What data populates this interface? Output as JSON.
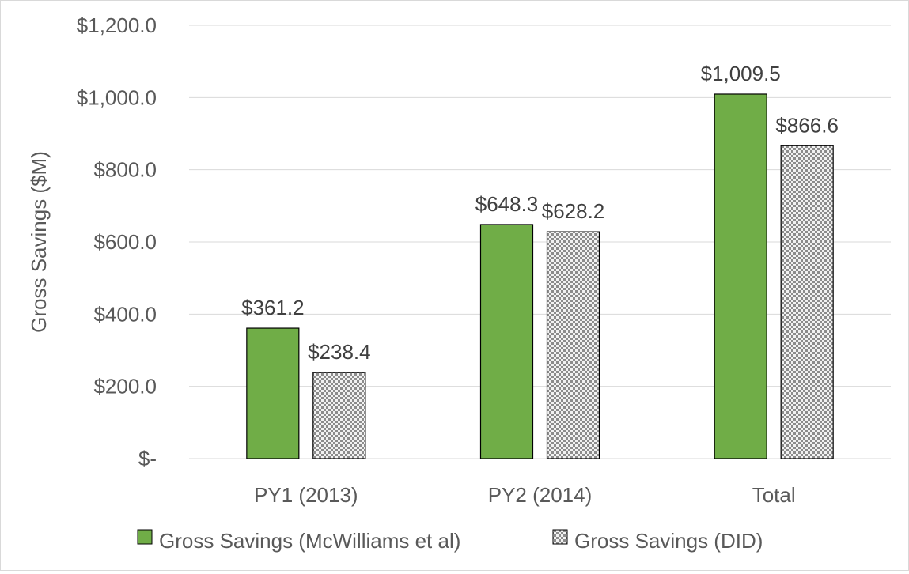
{
  "chart_data": {
    "type": "bar",
    "title": "",
    "xlabel": "",
    "ylabel": "Gross Savings ($M)",
    "categories": [
      "PY1 (2013)",
      "PY2 (2014)",
      "Total"
    ],
    "ylim": [
      0,
      1200
    ],
    "yticks": [
      0,
      200,
      400,
      600,
      800,
      1000,
      1200
    ],
    "ytick_labels": [
      "$-",
      "$200.0",
      "$400.0",
      "$600.0",
      "$800.0",
      "$1,000.0",
      "$1,200.0"
    ],
    "grid": true,
    "legend_position": "bottom",
    "series": [
      {
        "name": "Gross Savings (McWilliams et al)",
        "values": [
          361.2,
          648.3,
          1009.5
        ],
        "labels": [
          "$361.2",
          "$648.3",
          "$1,009.5"
        ],
        "color": "#70ad47",
        "pattern": "solid"
      },
      {
        "name": "Gross Savings (DID)",
        "values": [
          238.4,
          628.2,
          866.6
        ],
        "labels": [
          "$238.4",
          "$628.2",
          "$866.6"
        ],
        "color": "#bfbfbf",
        "pattern": "checker"
      }
    ]
  }
}
